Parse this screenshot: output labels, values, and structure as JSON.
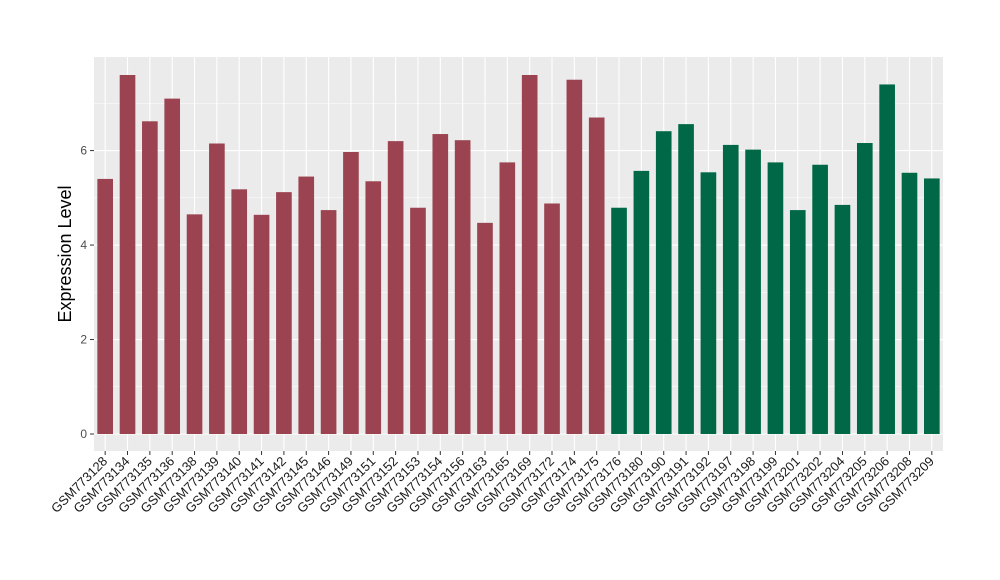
{
  "chart_data": {
    "type": "bar",
    "title": "",
    "xlabel": "",
    "ylabel": "Expression Level",
    "ylim": [
      0,
      7.9
    ],
    "yticks": [
      0,
      2,
      4,
      6
    ],
    "grid": true,
    "legend": "none",
    "colors": {
      "group_a": "#9b4350",
      "group_b": "#006846",
      "panel_bg": "#ebebeb",
      "grid": "#ffffff"
    },
    "categories": [
      "GSM773128",
      "GSM773134",
      "GSM773135",
      "GSM773136",
      "GSM773138",
      "GSM773139",
      "GSM773140",
      "GSM773141",
      "GSM773142",
      "GSM773145",
      "GSM773146",
      "GSM773149",
      "GSM773151",
      "GSM773152",
      "GSM773153",
      "GSM773154",
      "GSM773156",
      "GSM773163",
      "GSM773165",
      "GSM773169",
      "GSM773172",
      "GSM773174",
      "GSM773175",
      "GSM773176",
      "GSM773180",
      "GSM773190",
      "GSM773191",
      "GSM773192",
      "GSM773197",
      "GSM773198",
      "GSM773199",
      "GSM773201",
      "GSM773202",
      "GSM773204",
      "GSM773205",
      "GSM773206",
      "GSM773208",
      "GSM773209"
    ],
    "values": [
      5.4,
      7.6,
      6.62,
      7.1,
      4.65,
      6.15,
      5.18,
      4.64,
      5.12,
      5.45,
      4.74,
      5.97,
      5.35,
      6.2,
      4.79,
      6.35,
      6.22,
      4.47,
      5.75,
      7.6,
      4.88,
      7.5,
      6.7,
      4.79,
      5.57,
      6.41,
      6.56,
      5.54,
      6.12,
      6.02,
      5.75,
      4.74,
      5.7,
      4.85,
      6.16,
      7.4,
      5.53,
      5.41
    ],
    "groups": [
      "a",
      "a",
      "a",
      "a",
      "a",
      "a",
      "a",
      "a",
      "a",
      "a",
      "a",
      "a",
      "a",
      "a",
      "a",
      "a",
      "a",
      "a",
      "a",
      "a",
      "a",
      "a",
      "a",
      "b",
      "b",
      "b",
      "b",
      "b",
      "b",
      "b",
      "b",
      "b",
      "b",
      "b",
      "b",
      "b",
      "b",
      "b"
    ]
  }
}
